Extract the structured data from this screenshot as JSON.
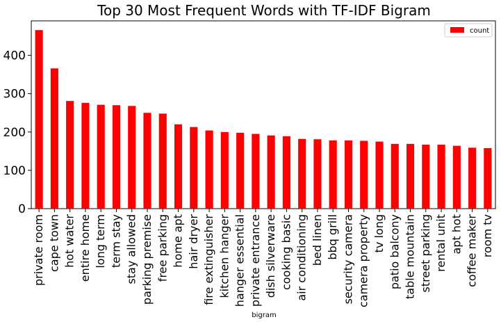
{
  "chart_data": {
    "type": "bar",
    "title": "Top 30 Most Frequent Words with TF-IDF Bigram",
    "xlabel": "bigram",
    "ylabel": "",
    "ylim": [
      0,
      490
    ],
    "yticks": [
      0,
      100,
      200,
      300,
      400
    ],
    "legend": {
      "position": "top-right",
      "label": "count"
    },
    "categories": [
      "private room",
      "cape town",
      "hot water",
      "entire home",
      "long term",
      "term stay",
      "stay allowed",
      "parking premise",
      "free parking",
      "home apt",
      "hair dryer",
      "fire extinguisher",
      "kitchen hanger",
      "hanger essential",
      "private entrance",
      "dish silverware",
      "cooking basic",
      "air conditioning",
      "bed linen",
      "bbq grill",
      "security camera",
      "camera property",
      "tv long",
      "patio balcony",
      "table mountain",
      "street parking",
      "rental unit",
      "apt hot",
      "coffee maker",
      "room tv"
    ],
    "series": [
      {
        "name": "count",
        "color": "#ff0000",
        "values": [
          466,
          366,
          281,
          276,
          271,
          270,
          268,
          250,
          248,
          220,
          213,
          204,
          200,
          198,
          195,
          191,
          189,
          182,
          181,
          178,
          178,
          177,
          175,
          169,
          169,
          167,
          167,
          164,
          159,
          158
        ]
      }
    ]
  }
}
